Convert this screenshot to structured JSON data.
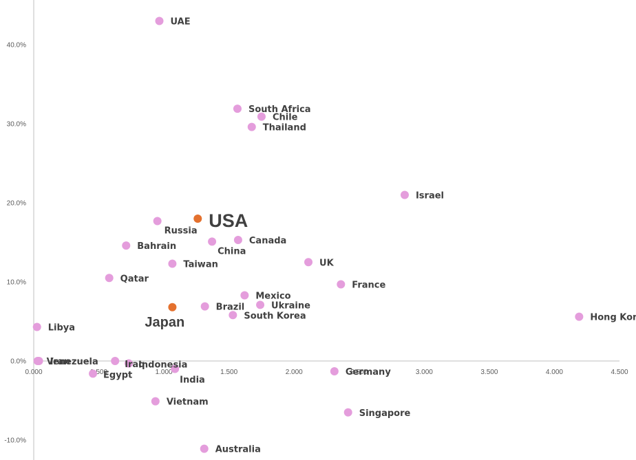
{
  "chart_data": {
    "type": "scatter",
    "title": "",
    "xlabel": "",
    "ylabel": "",
    "xlim": [
      0,
      4.5
    ],
    "ylim": [
      -0.125,
      0.44
    ],
    "x_ticks": [
      0,
      0.5,
      1.0,
      1.5,
      2.0,
      2.5,
      3.0,
      3.5,
      4.0,
      4.5
    ],
    "x_tick_labels": [
      "0.000",
      "0.500",
      "1.000",
      "1.500",
      "2.000",
      "2.500",
      "3.000",
      "3.500",
      "4.000",
      "4.500"
    ],
    "y_ticks": [
      -0.1,
      0.0,
      0.1,
      0.2,
      0.3,
      0.4
    ],
    "y_tick_labels": [
      "-10.0%",
      "0.0%",
      "10.0%",
      "20.0%",
      "30.0%",
      "40.0%"
    ],
    "grid": false,
    "colors": {
      "default": "#e49ddc",
      "highlight": "#e4712e",
      "label": "#404040",
      "axis": "#bfbfbf"
    },
    "points": [
      {
        "label": "UAE",
        "x": 0.965,
        "y": 0.43
      },
      {
        "label": "South Africa",
        "x": 1.565,
        "y": 0.319
      },
      {
        "label": "Chile",
        "x": 1.75,
        "y": 0.309
      },
      {
        "label": "Thailand",
        "x": 1.675,
        "y": 0.296
      },
      {
        "label": "Israel",
        "x": 2.85,
        "y": 0.21
      },
      {
        "label": "USA",
        "x": 1.26,
        "y": 0.18,
        "highlight": true,
        "size": "big"
      },
      {
        "label": "Russia",
        "x": 0.95,
        "y": 0.177
      },
      {
        "label": "Canada",
        "x": 1.57,
        "y": 0.153
      },
      {
        "label": "China",
        "x": 1.37,
        "y": 0.151
      },
      {
        "label": "Bahrain",
        "x": 0.71,
        "y": 0.146
      },
      {
        "label": "Taiwan",
        "x": 1.065,
        "y": 0.123
      },
      {
        "label": "UK",
        "x": 2.11,
        "y": 0.125
      },
      {
        "label": "Qatar",
        "x": 0.58,
        "y": 0.105
      },
      {
        "label": "France",
        "x": 2.36,
        "y": 0.097
      },
      {
        "label": "Mexico",
        "x": 1.62,
        "y": 0.083
      },
      {
        "label": "Ukraine",
        "x": 1.74,
        "y": 0.071
      },
      {
        "label": "Japan",
        "x": 1.065,
        "y": 0.068,
        "highlight": true,
        "size": "mid"
      },
      {
        "label": "Brazil",
        "x": 1.315,
        "y": 0.069
      },
      {
        "label": "South Korea",
        "x": 1.53,
        "y": 0.058
      },
      {
        "label": "Hong Kong",
        "x": 4.19,
        "y": 0.056
      },
      {
        "label": "Libya",
        "x": 0.025,
        "y": 0.043
      },
      {
        "label": "Iran",
        "x": 0.04,
        "y": 0.0
      },
      {
        "label": "Venezuela",
        "x": 0.03,
        "y": 0.0
      },
      {
        "label": "Iraq",
        "x": 0.625,
        "y": 0.0
      },
      {
        "label": "Indonesia",
        "x": 0.73,
        "y": -0.003
      },
      {
        "label": "Egypt",
        "x": 0.455,
        "y": -0.016
      },
      {
        "label": "India",
        "x": 1.085,
        "y": -0.01
      },
      {
        "label": "Germany",
        "x": 2.31,
        "y": -0.013
      },
      {
        "label": "Vietnam",
        "x": 0.935,
        "y": -0.051
      },
      {
        "label": "Singapore",
        "x": 2.415,
        "y": -0.065
      },
      {
        "label": "Australia",
        "x": 1.31,
        "y": -0.111
      }
    ]
  }
}
